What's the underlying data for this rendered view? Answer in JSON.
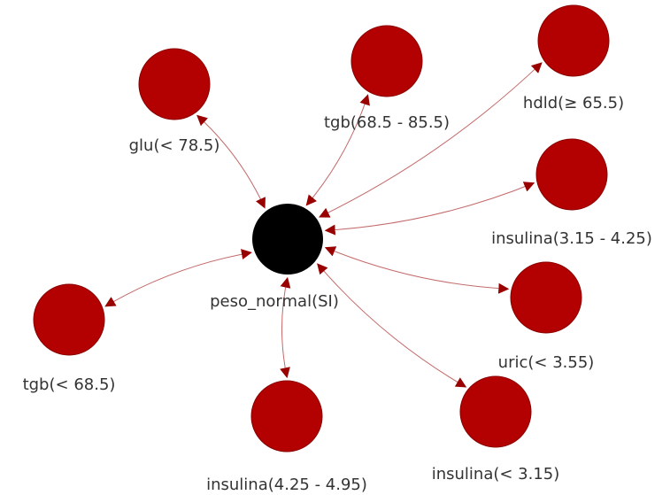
{
  "colors": {
    "center_node": "#000000",
    "outer_node": "#b30000",
    "outer_node_stroke": "#8a0000",
    "edge": "#c46a6a",
    "arrow": "#990000",
    "label": "#333333"
  },
  "center": {
    "label": "peso_normal(SI)"
  },
  "nodes": [
    {
      "id": "glu",
      "label": "glu(< 78.5)",
      "direction": "bidirectional"
    },
    {
      "id": "tgb_mid",
      "label": "tgb(68.5 - 85.5)",
      "direction": "bidirectional"
    },
    {
      "id": "hdld",
      "label": "hdld(≥ 65.5)",
      "direction": "bidirectional"
    },
    {
      "id": "insulina_315_425",
      "label": "insulina(3.15 - 4.25)",
      "direction": "bidirectional"
    },
    {
      "id": "uric",
      "label": "uric(< 3.55)",
      "direction": "bidirectional"
    },
    {
      "id": "insulina_lt_315",
      "label": "insulina(< 3.15)",
      "direction": "bidirectional"
    },
    {
      "id": "insulina_425_495",
      "label": "insulina(4.25 - 4.95)",
      "direction": "bidirectional"
    },
    {
      "id": "tgb_low",
      "label": "tgb(< 68.5)",
      "direction": "bidirectional"
    }
  ]
}
